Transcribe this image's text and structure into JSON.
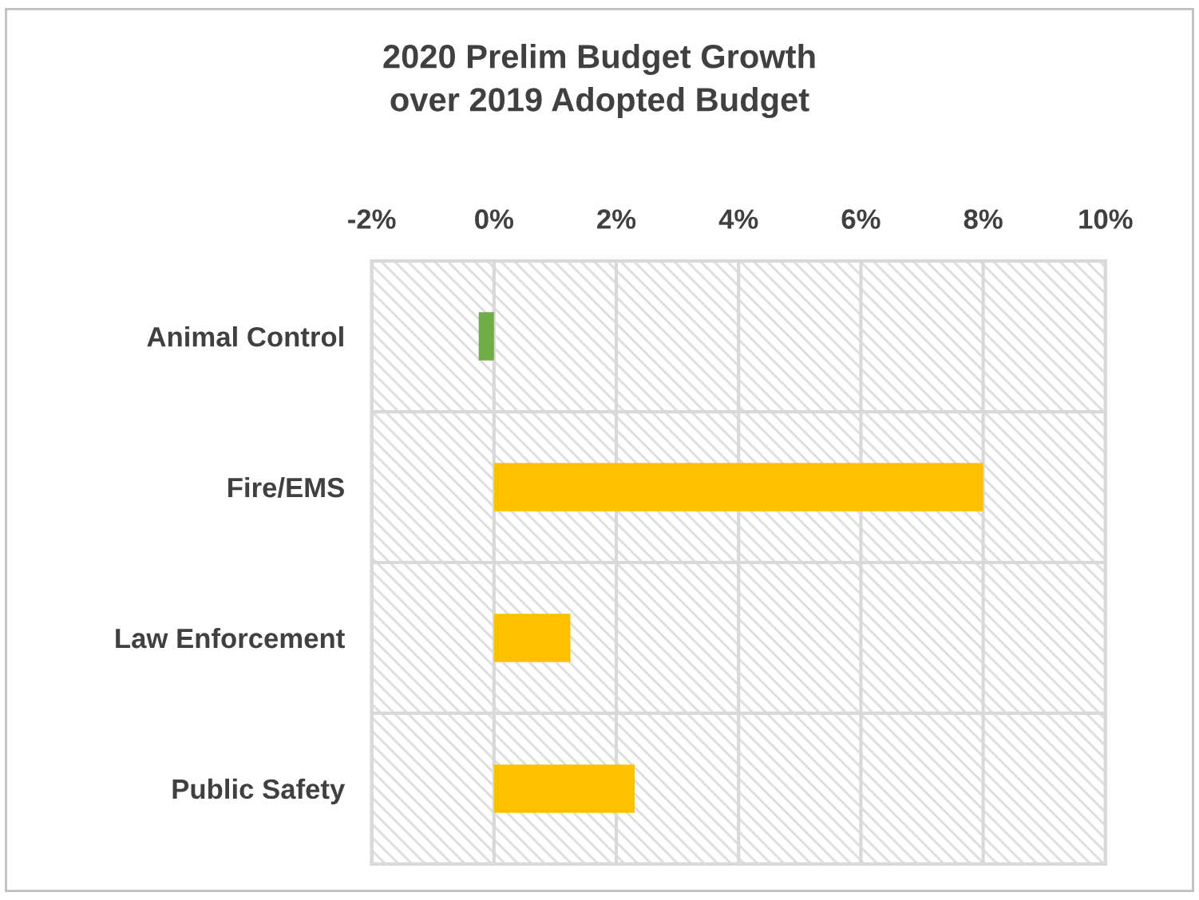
{
  "chart_data": {
    "type": "bar",
    "orientation": "horizontal",
    "title": "2020 Prelim Budget Growth\nover 2019 Adopted Budget",
    "categories": [
      "Animal Control",
      "Fire/EMS",
      "Law Enforcement",
      "Public Safety"
    ],
    "values": [
      -0.25,
      8.0,
      1.25,
      2.3
    ],
    "colors": [
      "#70ad47",
      "#ffc000",
      "#ffc000",
      "#ffc000"
    ],
    "xlim": [
      -2,
      10
    ],
    "xticks": [
      {
        "value": -2,
        "label": "-2%"
      },
      {
        "value": 0,
        "label": "0%"
      },
      {
        "value": 2,
        "label": "2%"
      },
      {
        "value": 4,
        "label": "4%"
      },
      {
        "value": 6,
        "label": "6%"
      },
      {
        "value": 8,
        "label": "8%"
      },
      {
        "value": 10,
        "label": "10%"
      }
    ],
    "grid": true
  }
}
